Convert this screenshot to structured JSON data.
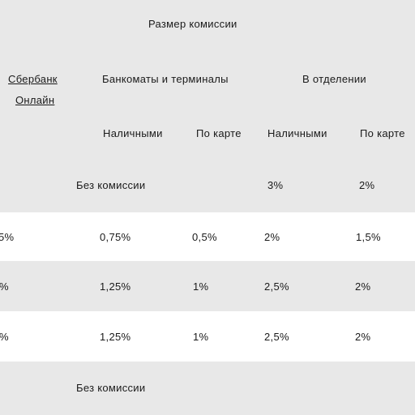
{
  "header": {
    "title": "Размер комиссии",
    "channel_online": "Сбербанк Онлайн",
    "channel_online_line1": "Сбербанк",
    "channel_online_line2": "Онлайн",
    "group_atm": "Банкоматы и терминалы",
    "group_branch": "В отделении",
    "sub_cash_atm": "Наличными",
    "sub_card_atm": "По карте",
    "sub_cash_branch": "Наличными",
    "sub_card_branch": "По карте"
  },
  "rows": [
    {
      "atm_merged": "Без комиссии",
      "branch_cash": "3%",
      "branch_card": "2%"
    },
    {
      "online": "5%",
      "atm_cash": "0,75%",
      "atm_card": "0,5%",
      "branch_cash": "2%",
      "branch_card": "1,5%"
    },
    {
      "online": "%",
      "atm_cash": "1,25%",
      "atm_card": "1%",
      "branch_cash": "2,5%",
      "branch_card": "2%"
    },
    {
      "online": "%",
      "atm_cash": "1,25%",
      "atm_card": "1%",
      "branch_cash": "2,5%",
      "branch_card": "2%"
    },
    {
      "atm_merged": "Без комиссии"
    }
  ]
}
